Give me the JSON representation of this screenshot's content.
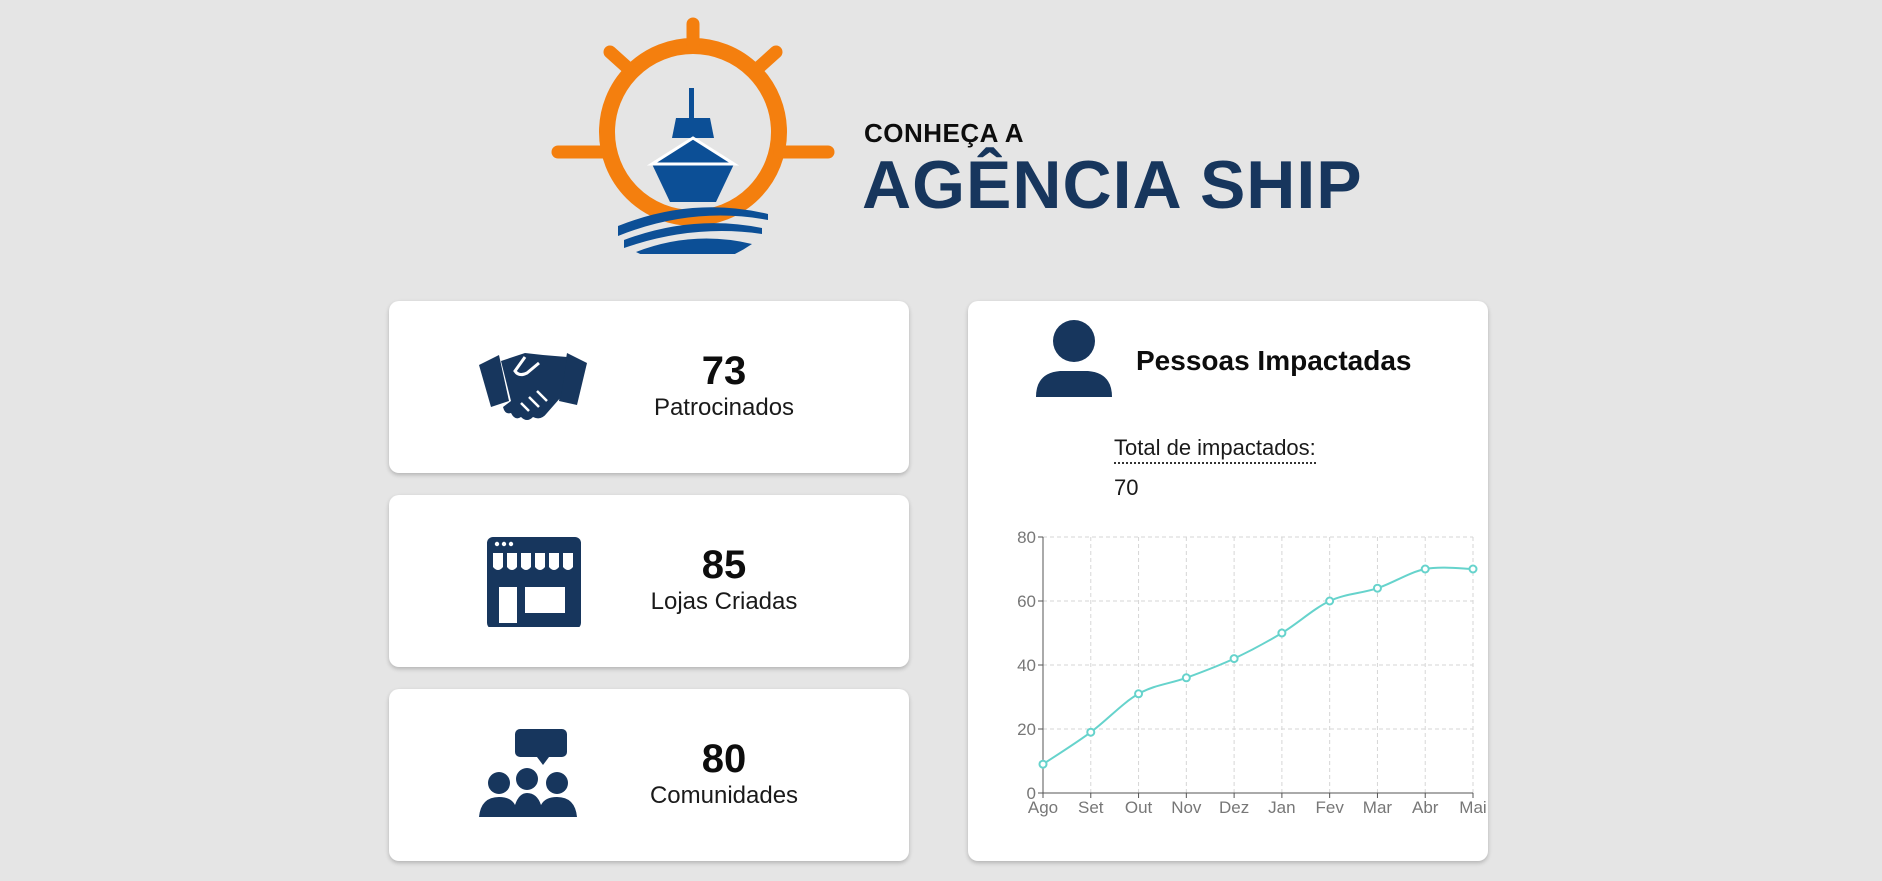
{
  "header": {
    "title_small": "CONHEÇA A",
    "title_big": "AGÊNCIA SHIP"
  },
  "colors": {
    "brand_navy": "#17365d",
    "brand_orange": "#f47f0e",
    "ship_blue": "#0c4f96",
    "line_teal": "#66d3cc"
  },
  "stats": [
    {
      "value": "73",
      "label": "Patrocinados",
      "icon": "handshake-icon"
    },
    {
      "value": "85",
      "label": "Lojas Criadas",
      "icon": "store-icon"
    },
    {
      "value": "80",
      "label": "Comunidades",
      "icon": "community-icon"
    }
  ],
  "impact": {
    "icon": "person-icon",
    "title": "Pessoas Impactadas",
    "total_label": "Total de impactados:",
    "total_value": "70"
  },
  "chart_data": {
    "type": "line",
    "x": [
      "Ago",
      "Set",
      "Out",
      "Nov",
      "Dez",
      "Jan",
      "Fev",
      "Mar",
      "Abr",
      "Mai"
    ],
    "series": [
      {
        "values": [
          9,
          19,
          31,
          36,
          42,
          50,
          60,
          64,
          70,
          70
        ]
      }
    ],
    "ylim": [
      0,
      80
    ],
    "yticks": [
      0,
      20,
      40,
      60,
      80
    ],
    "grid": true,
    "color": "#66d3cc"
  }
}
